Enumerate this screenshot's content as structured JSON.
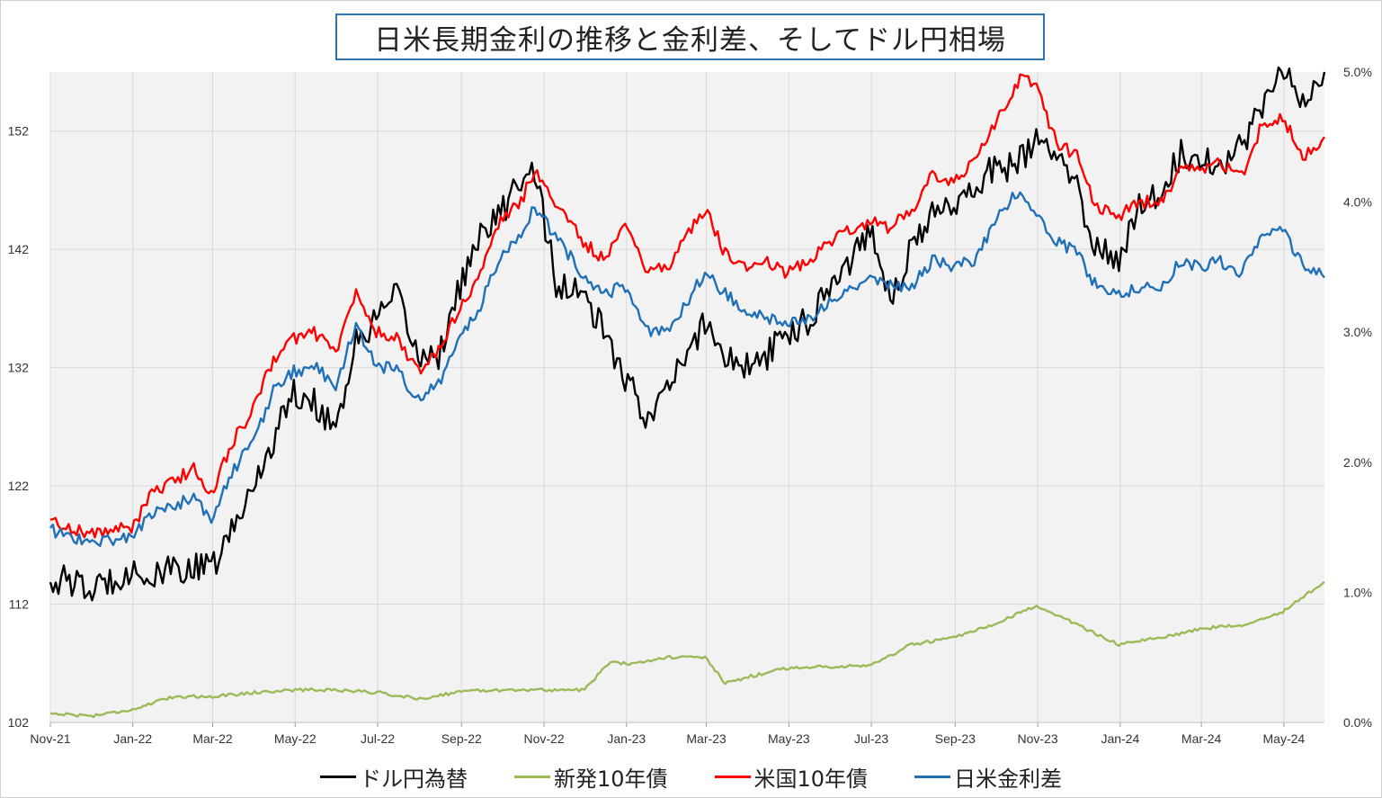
{
  "chart_data": {
    "type": "line",
    "title": "日米長期金利の推移と金利差、そしてドル円相場",
    "x_ticks": [
      "Nov-21",
      "Jan-22",
      "Mar-22",
      "May-22",
      "Jul-22",
      "Sep-22",
      "Nov-22",
      "Jan-23",
      "Mar-23",
      "May-23",
      "Jul-23",
      "Sep-23",
      "Nov-23",
      "Jan-24",
      "Mar-24",
      "May-24"
    ],
    "x_range": [
      "2021-11-01",
      "2024-05-31"
    ],
    "y_left": {
      "ticks": [
        "102",
        "112",
        "122",
        "132",
        "142",
        "152"
      ],
      "range": [
        102,
        157
      ]
    },
    "y_right": {
      "ticks": [
        "0.0%",
        "1.0%",
        "2.0%",
        "3.0%",
        "4.0%",
        "5.0%"
      ],
      "range": [
        0.0,
        5.0
      ]
    },
    "grid": true,
    "legend_position": "bottom",
    "series": [
      {
        "name": "ドル円為替",
        "axis": "left",
        "color": "#000000",
        "points": [
          [
            "2021-11-01",
            114
          ],
          [
            "2021-11-15",
            114
          ],
          [
            "2021-11-30",
            113
          ],
          [
            "2021-12-15",
            114
          ],
          [
            "2021-12-31",
            115
          ],
          [
            "2022-01-15",
            114
          ],
          [
            "2022-01-31",
            115
          ],
          [
            "2022-02-15",
            115
          ],
          [
            "2022-02-28",
            115
          ],
          [
            "2022-03-15",
            118
          ],
          [
            "2022-03-31",
            122
          ],
          [
            "2022-04-15",
            126
          ],
          [
            "2022-04-30",
            130
          ],
          [
            "2022-05-15",
            129
          ],
          [
            "2022-05-31",
            127
          ],
          [
            "2022-06-15",
            134
          ],
          [
            "2022-06-30",
            136
          ],
          [
            "2022-07-15",
            138
          ],
          [
            "2022-07-31",
            133
          ],
          [
            "2022-08-15",
            133
          ],
          [
            "2022-08-31",
            139
          ],
          [
            "2022-09-15",
            143
          ],
          [
            "2022-09-30",
            145
          ],
          [
            "2022-10-15",
            148
          ],
          [
            "2022-10-25",
            149
          ],
          [
            "2022-11-10",
            139
          ],
          [
            "2022-11-30",
            138
          ],
          [
            "2022-12-15",
            135
          ],
          [
            "2022-12-31",
            131
          ],
          [
            "2023-01-15",
            128
          ],
          [
            "2023-01-31",
            130
          ],
          [
            "2023-02-15",
            133
          ],
          [
            "2023-02-28",
            136
          ],
          [
            "2023-03-15",
            133
          ],
          [
            "2023-03-31",
            132
          ],
          [
            "2023-04-15",
            133
          ],
          [
            "2023-04-30",
            135
          ],
          [
            "2023-05-15",
            136
          ],
          [
            "2023-05-31",
            139
          ],
          [
            "2023-06-15",
            141
          ],
          [
            "2023-06-30",
            144
          ],
          [
            "2023-07-15",
            138
          ],
          [
            "2023-07-31",
            142
          ],
          [
            "2023-08-15",
            145
          ],
          [
            "2023-08-31",
            146
          ],
          [
            "2023-09-15",
            147
          ],
          [
            "2023-09-30",
            149
          ],
          [
            "2023-10-15",
            149
          ],
          [
            "2023-10-31",
            151
          ],
          [
            "2023-11-15",
            150
          ],
          [
            "2023-11-30",
            147
          ],
          [
            "2023-12-15",
            142
          ],
          [
            "2023-12-31",
            141
          ],
          [
            "2024-01-15",
            146
          ],
          [
            "2024-01-31",
            147
          ],
          [
            "2024-02-15",
            150
          ],
          [
            "2024-02-29",
            150
          ],
          [
            "2024-03-15",
            149
          ],
          [
            "2024-03-31",
            151
          ],
          [
            "2024-04-15",
            154
          ],
          [
            "2024-04-29",
            158
          ],
          [
            "2024-05-15",
            154
          ],
          [
            "2024-05-31",
            157
          ]
        ]
      },
      {
        "name": "新発10年債",
        "axis": "right",
        "color": "#9bbb59",
        "points": [
          [
            "2021-11-01",
            0.07
          ],
          [
            "2021-12-01",
            0.05
          ],
          [
            "2022-01-01",
            0.1
          ],
          [
            "2022-02-01",
            0.2
          ],
          [
            "2022-03-01",
            0.2
          ],
          [
            "2022-04-01",
            0.23
          ],
          [
            "2022-05-01",
            0.25
          ],
          [
            "2022-06-01",
            0.25
          ],
          [
            "2022-07-01",
            0.23
          ],
          [
            "2022-08-01",
            0.18
          ],
          [
            "2022-09-01",
            0.24
          ],
          [
            "2022-10-01",
            0.25
          ],
          [
            "2022-11-01",
            0.25
          ],
          [
            "2022-12-01",
            0.25
          ],
          [
            "2022-12-20",
            0.47
          ],
          [
            "2023-01-01",
            0.45
          ],
          [
            "2023-01-31",
            0.5
          ],
          [
            "2023-02-28",
            0.5
          ],
          [
            "2023-03-15",
            0.3
          ],
          [
            "2023-04-01",
            0.35
          ],
          [
            "2023-05-01",
            0.42
          ],
          [
            "2023-06-01",
            0.43
          ],
          [
            "2023-07-01",
            0.44
          ],
          [
            "2023-07-31",
            0.6
          ],
          [
            "2023-08-31",
            0.65
          ],
          [
            "2023-09-30",
            0.75
          ],
          [
            "2023-10-31",
            0.9
          ],
          [
            "2023-11-30",
            0.75
          ],
          [
            "2023-12-31",
            0.6
          ],
          [
            "2024-01-31",
            0.65
          ],
          [
            "2024-02-29",
            0.72
          ],
          [
            "2024-03-31",
            0.75
          ],
          [
            "2024-04-30",
            0.85
          ],
          [
            "2024-05-31",
            1.08
          ]
        ]
      },
      {
        "name": "米国10年債",
        "axis": "right",
        "color": "#ff0000",
        "points": [
          [
            "2021-11-01",
            1.55
          ],
          [
            "2021-11-30",
            1.45
          ],
          [
            "2021-12-31",
            1.5
          ],
          [
            "2022-01-15",
            1.75
          ],
          [
            "2022-02-15",
            1.95
          ],
          [
            "2022-02-28",
            1.75
          ],
          [
            "2022-03-15",
            2.15
          ],
          [
            "2022-03-31",
            2.4
          ],
          [
            "2022-04-15",
            2.8
          ],
          [
            "2022-04-30",
            2.95
          ],
          [
            "2022-05-15",
            3.0
          ],
          [
            "2022-05-31",
            2.85
          ],
          [
            "2022-06-15",
            3.3
          ],
          [
            "2022-06-30",
            3.0
          ],
          [
            "2022-07-15",
            2.95
          ],
          [
            "2022-07-31",
            2.7
          ],
          [
            "2022-08-15",
            2.85
          ],
          [
            "2022-08-31",
            3.2
          ],
          [
            "2022-09-15",
            3.45
          ],
          [
            "2022-09-30",
            3.85
          ],
          [
            "2022-10-15",
            4.0
          ],
          [
            "2022-10-25",
            4.25
          ],
          [
            "2022-11-15",
            3.9
          ],
          [
            "2022-11-30",
            3.7
          ],
          [
            "2022-12-15",
            3.55
          ],
          [
            "2022-12-31",
            3.85
          ],
          [
            "2023-01-15",
            3.5
          ],
          [
            "2023-01-31",
            3.5
          ],
          [
            "2023-02-28",
            3.95
          ],
          [
            "2023-03-15",
            3.6
          ],
          [
            "2023-03-31",
            3.5
          ],
          [
            "2023-04-15",
            3.55
          ],
          [
            "2023-04-30",
            3.45
          ],
          [
            "2023-05-15",
            3.55
          ],
          [
            "2023-05-31",
            3.7
          ],
          [
            "2023-06-15",
            3.8
          ],
          [
            "2023-06-30",
            3.85
          ],
          [
            "2023-07-15",
            3.8
          ],
          [
            "2023-07-31",
            3.95
          ],
          [
            "2023-08-15",
            4.2
          ],
          [
            "2023-08-31",
            4.15
          ],
          [
            "2023-09-15",
            4.3
          ],
          [
            "2023-09-30",
            4.6
          ],
          [
            "2023-10-19",
            4.95
          ],
          [
            "2023-10-31",
            4.9
          ],
          [
            "2023-11-15",
            4.45
          ],
          [
            "2023-11-30",
            4.35
          ],
          [
            "2023-12-15",
            3.95
          ],
          [
            "2023-12-31",
            3.9
          ],
          [
            "2024-01-15",
            4.0
          ],
          [
            "2024-01-31",
            4.0
          ],
          [
            "2024-02-15",
            4.25
          ],
          [
            "2024-02-29",
            4.25
          ],
          [
            "2024-03-15",
            4.3
          ],
          [
            "2024-03-31",
            4.2
          ],
          [
            "2024-04-15",
            4.6
          ],
          [
            "2024-04-30",
            4.65
          ],
          [
            "2024-05-15",
            4.35
          ],
          [
            "2024-05-31",
            4.5
          ]
        ]
      },
      {
        "name": "日米金利差",
        "axis": "right",
        "color": "#2070b8",
        "points": [
          [
            "2021-11-01",
            1.48
          ],
          [
            "2021-11-30",
            1.38
          ],
          [
            "2021-12-31",
            1.43
          ],
          [
            "2022-01-15",
            1.6
          ],
          [
            "2022-02-15",
            1.73
          ],
          [
            "2022-02-28",
            1.55
          ],
          [
            "2022-03-15",
            1.92
          ],
          [
            "2022-03-31",
            2.15
          ],
          [
            "2022-04-15",
            2.55
          ],
          [
            "2022-04-30",
            2.7
          ],
          [
            "2022-05-15",
            2.73
          ],
          [
            "2022-05-31",
            2.6
          ],
          [
            "2022-06-15",
            3.05
          ],
          [
            "2022-06-30",
            2.75
          ],
          [
            "2022-07-15",
            2.7
          ],
          [
            "2022-07-31",
            2.5
          ],
          [
            "2022-08-15",
            2.6
          ],
          [
            "2022-08-31",
            2.95
          ],
          [
            "2022-09-15",
            3.2
          ],
          [
            "2022-09-30",
            3.6
          ],
          [
            "2022-10-15",
            3.75
          ],
          [
            "2022-10-25",
            3.98
          ],
          [
            "2022-11-15",
            3.65
          ],
          [
            "2022-11-30",
            3.45
          ],
          [
            "2022-12-15",
            3.3
          ],
          [
            "2022-12-31",
            3.35
          ],
          [
            "2023-01-15",
            3.0
          ],
          [
            "2023-01-31",
            3.0
          ],
          [
            "2023-02-28",
            3.45
          ],
          [
            "2023-03-15",
            3.3
          ],
          [
            "2023-03-31",
            3.15
          ],
          [
            "2023-04-15",
            3.1
          ],
          [
            "2023-04-30",
            3.05
          ],
          [
            "2023-05-15",
            3.1
          ],
          [
            "2023-05-31",
            3.25
          ],
          [
            "2023-06-15",
            3.35
          ],
          [
            "2023-06-30",
            3.4
          ],
          [
            "2023-07-15",
            3.35
          ],
          [
            "2023-07-31",
            3.35
          ],
          [
            "2023-08-15",
            3.55
          ],
          [
            "2023-08-31",
            3.5
          ],
          [
            "2023-09-15",
            3.55
          ],
          [
            "2023-09-30",
            3.85
          ],
          [
            "2023-10-19",
            4.1
          ],
          [
            "2023-10-31",
            3.9
          ],
          [
            "2023-11-15",
            3.7
          ],
          [
            "2023-11-30",
            3.6
          ],
          [
            "2023-12-15",
            3.35
          ],
          [
            "2023-12-31",
            3.3
          ],
          [
            "2024-01-15",
            3.35
          ],
          [
            "2024-01-31",
            3.35
          ],
          [
            "2024-02-15",
            3.55
          ],
          [
            "2024-02-29",
            3.5
          ],
          [
            "2024-03-15",
            3.55
          ],
          [
            "2024-03-31",
            3.45
          ],
          [
            "2024-04-15",
            3.75
          ],
          [
            "2024-04-30",
            3.8
          ],
          [
            "2024-05-15",
            3.5
          ],
          [
            "2024-05-31",
            3.42
          ]
        ]
      }
    ]
  }
}
